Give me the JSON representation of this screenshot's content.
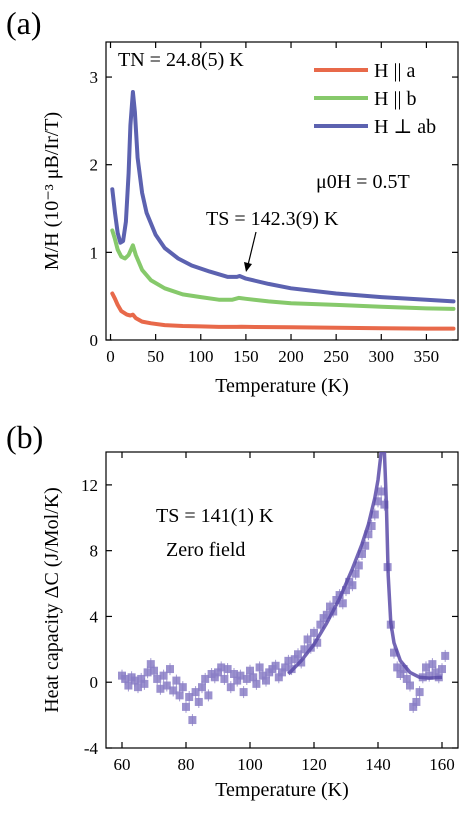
{
  "chart_data": [
    {
      "type": "line",
      "panel_label": "(a)",
      "xlabel": "Temperature (K)",
      "ylabel": "M/H (10⁻³ μB/Ir/T)",
      "xlim": [
        -5,
        385
      ],
      "ylim": [
        0,
        3.4
      ],
      "xticks": [
        0,
        50,
        100,
        150,
        200,
        250,
        300,
        350
      ],
      "yticks": [
        0,
        1,
        2,
        3
      ],
      "annotations": {
        "tn": "TN = 24.8(5) K",
        "ts": "TS = 142.3(9) K",
        "field": "μ0H = 0.5T"
      },
      "series": [
        {
          "name": "H || a",
          "color": "#e8694a",
          "points": [
            [
              2,
              0.53
            ],
            [
              5,
              0.47
            ],
            [
              8,
              0.4
            ],
            [
              12,
              0.33
            ],
            [
              18,
              0.29
            ],
            [
              22,
              0.28
            ],
            [
              24.8,
              0.29
            ],
            [
              28,
              0.25
            ],
            [
              35,
              0.21
            ],
            [
              45,
              0.19
            ],
            [
              60,
              0.17
            ],
            [
              80,
              0.16
            ],
            [
              100,
              0.155
            ],
            [
              120,
              0.15
            ],
            [
              140,
              0.15
            ],
            [
              145,
              0.152
            ],
            [
              160,
              0.148
            ],
            [
              200,
              0.145
            ],
            [
              250,
              0.14
            ],
            [
              300,
              0.135
            ],
            [
              350,
              0.13
            ],
            [
              380,
              0.13
            ]
          ]
        },
        {
          "name": "H || b",
          "color": "#86c96b",
          "points": [
            [
              2,
              1.25
            ],
            [
              5,
              1.15
            ],
            [
              8,
              1.03
            ],
            [
              12,
              0.95
            ],
            [
              16,
              0.93
            ],
            [
              20,
              0.97
            ],
            [
              24.8,
              1.08
            ],
            [
              28,
              0.97
            ],
            [
              35,
              0.8
            ],
            [
              45,
              0.68
            ],
            [
              60,
              0.59
            ],
            [
              80,
              0.52
            ],
            [
              100,
              0.49
            ],
            [
              120,
              0.46
            ],
            [
              135,
              0.46
            ],
            [
              142,
              0.48
            ],
            [
              150,
              0.47
            ],
            [
              175,
              0.44
            ],
            [
              200,
              0.42
            ],
            [
              250,
              0.4
            ],
            [
              300,
              0.38
            ],
            [
              350,
              0.36
            ],
            [
              380,
              0.355
            ]
          ]
        },
        {
          "name": "H ⊥ ab",
          "color": "#5c62b0",
          "points": [
            [
              2,
              1.72
            ],
            [
              5,
              1.45
            ],
            [
              8,
              1.22
            ],
            [
              11,
              1.11
            ],
            [
              14,
              1.13
            ],
            [
              17,
              1.35
            ],
            [
              20,
              1.9
            ],
            [
              22,
              2.45
            ],
            [
              24.8,
              2.83
            ],
            [
              27,
              2.6
            ],
            [
              30,
              2.08
            ],
            [
              35,
              1.68
            ],
            [
              40,
              1.45
            ],
            [
              50,
              1.2
            ],
            [
              60,
              1.05
            ],
            [
              75,
              0.93
            ],
            [
              90,
              0.85
            ],
            [
              110,
              0.78
            ],
            [
              130,
              0.72
            ],
            [
              140,
              0.72
            ],
            [
              143,
              0.73
            ],
            [
              150,
              0.7
            ],
            [
              175,
              0.64
            ],
            [
              200,
              0.59
            ],
            [
              250,
              0.53
            ],
            [
              300,
              0.49
            ],
            [
              350,
              0.46
            ],
            [
              380,
              0.44
            ]
          ]
        }
      ]
    },
    {
      "type": "scatter",
      "panel_label": "(b)",
      "xlabel": "Temperature (K)",
      "ylabel": "Heat capacity ΔC (J/Mol/K)",
      "xlim": [
        55,
        165
      ],
      "ylim": [
        -4,
        14
      ],
      "xticks": [
        60,
        80,
        100,
        120,
        140,
        160
      ],
      "yticks": [
        -4,
        0,
        4,
        8,
        12
      ],
      "annotations": {
        "ts": "TS = 141(1) K",
        "field": "Zero field"
      },
      "marker_color": "#8a7ec6",
      "fit_color": "#5a4ba8",
      "points": [
        [
          60,
          0.4
        ],
        [
          61,
          0.2
        ],
        [
          62,
          -0.2
        ],
        [
          63,
          0.3
        ],
        [
          64,
          0.1
        ],
        [
          65,
          -0.3
        ],
        [
          66,
          0.2
        ],
        [
          67,
          -0.1
        ],
        [
          68,
          0.6
        ],
        [
          69,
          1.1
        ],
        [
          70,
          0.7
        ],
        [
          71,
          0.2
        ],
        [
          72,
          -0.4
        ],
        [
          73,
          0.4
        ],
        [
          74,
          -0.2
        ],
        [
          75,
          0.8
        ],
        [
          76,
          -0.5
        ],
        [
          77,
          0.1
        ],
        [
          78,
          -0.8
        ],
        [
          79,
          -0.3
        ],
        [
          80,
          -1.5
        ],
        [
          81,
          -0.9
        ],
        [
          82,
          -2.3
        ],
        [
          83,
          -0.6
        ],
        [
          84,
          -1.2
        ],
        [
          85,
          -0.3
        ],
        [
          86,
          0.2
        ],
        [
          87,
          -0.8
        ],
        [
          88,
          0.5
        ],
        [
          89,
          0.3
        ],
        [
          90,
          0.6
        ],
        [
          91,
          0.9
        ],
        [
          92,
          0.2
        ],
        [
          93,
          0.8
        ],
        [
          94,
          -0.3
        ],
        [
          95,
          0.5
        ],
        [
          96,
          0.1
        ],
        [
          97,
          0.4
        ],
        [
          98,
          -0.6
        ],
        [
          99,
          0.2
        ],
        [
          100,
          0.7
        ],
        [
          101,
          0.3
        ],
        [
          102,
          -0.1
        ],
        [
          103,
          0.9
        ],
        [
          104,
          0.4
        ],
        [
          105,
          0.1
        ],
        [
          106,
          0.6
        ],
        [
          107,
          0.8
        ],
        [
          108,
          1.0
        ],
        [
          109,
          0.3
        ],
        [
          110,
          0.6
        ],
        [
          111,
          0.9
        ],
        [
          112,
          1.3
        ],
        [
          113,
          0.8
        ],
        [
          114,
          1.4
        ],
        [
          115,
          1.7
        ],
        [
          116,
          1.2
        ],
        [
          117,
          2.0
        ],
        [
          118,
          2.6
        ],
        [
          119,
          2.1
        ],
        [
          120,
          3.0
        ],
        [
          121,
          2.4
        ],
        [
          122,
          3.5
        ],
        [
          123,
          3.9
        ],
        [
          124,
          4.1
        ],
        [
          125,
          4.6
        ],
        [
          126,
          4.3
        ],
        [
          127,
          5.0
        ],
        [
          128,
          5.3
        ],
        [
          129,
          4.8
        ],
        [
          130,
          5.6
        ],
        [
          131,
          6.1
        ],
        [
          132,
          5.9
        ],
        [
          133,
          6.6
        ],
        [
          134,
          7.1
        ],
        [
          135,
          7.8
        ],
        [
          136,
          8.3
        ],
        [
          137,
          9.0
        ],
        [
          138,
          9.5
        ],
        [
          139,
          10.2
        ],
        [
          140,
          11.0
        ],
        [
          141,
          11.6
        ],
        [
          142,
          10.8
        ],
        [
          143,
          7.0
        ],
        [
          144,
          3.5
        ],
        [
          145,
          1.8
        ],
        [
          146,
          0.9
        ],
        [
          147,
          0.5
        ],
        [
          148,
          0.8
        ],
        [
          149,
          0.2
        ],
        [
          150,
          -0.2
        ],
        [
          151,
          -1.5
        ],
        [
          152,
          -1.2
        ],
        [
          153,
          -0.6
        ],
        [
          154,
          0.3
        ],
        [
          155,
          0.9
        ],
        [
          156,
          0.4
        ],
        [
          157,
          1.1
        ],
        [
          158,
          0.6
        ],
        [
          159,
          0.3
        ],
        [
          160,
          0.8
        ],
        [
          161,
          1.6
        ]
      ],
      "fit": [
        [
          112,
          0.5
        ],
        [
          116,
          1.3
        ],
        [
          120,
          2.3
        ],
        [
          124,
          3.6
        ],
        [
          128,
          5.1
        ],
        [
          132,
          6.9
        ],
        [
          135,
          8.4
        ],
        [
          137,
          9.6
        ],
        [
          139,
          11.2
        ],
        [
          140,
          12.3
        ],
        [
          141,
          14.0
        ],
        [
          142,
          14.0
        ],
        [
          142.6,
          11.0
        ],
        [
          143.2,
          6.5
        ],
        [
          144,
          3.6
        ],
        [
          145,
          2.4
        ],
        [
          147,
          1.3
        ],
        [
          150,
          0.6
        ],
        [
          153,
          0.3
        ],
        [
          156,
          0.25
        ],
        [
          160,
          0.3
        ]
      ]
    }
  ]
}
